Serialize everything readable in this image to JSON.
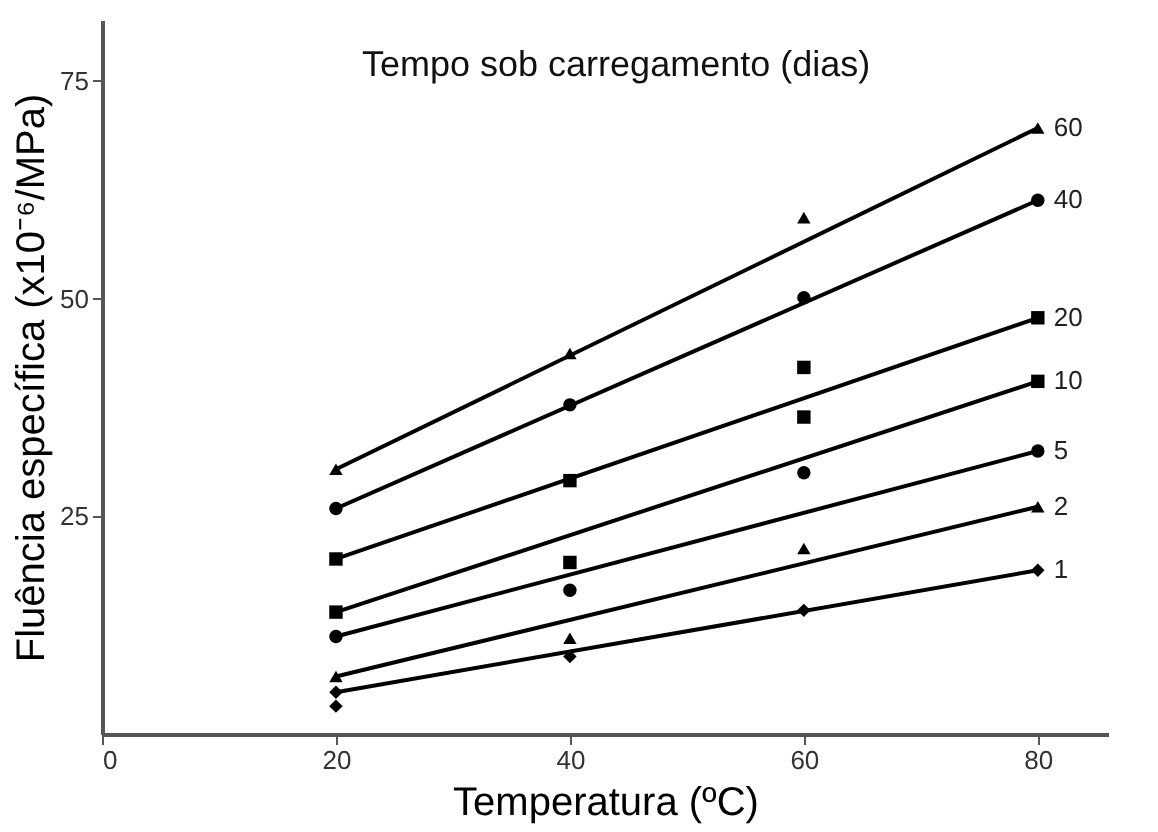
{
  "chart_data": {
    "type": "scatter",
    "xlabel": "Temperatura (ºC)",
    "ylabel": "Fluência específica (x10⁻⁶/MPa)",
    "legend_title": "Tempo sob carregamento (dias)",
    "legend": false,
    "grid": false,
    "xlim": [
      0,
      86
    ],
    "ylim": [
      0,
      82
    ],
    "xticks": [
      0,
      20,
      40,
      60,
      80
    ],
    "yticks": [
      25,
      50,
      75
    ],
    "series": [
      {
        "type": "line",
        "color": "#000000",
        "x": [
          20,
          80
        ],
        "values": [
          30.4,
          69.6
        ]
      },
      {
        "type": "line",
        "color": "#000000",
        "x": [
          20,
          80
        ],
        "values": [
          25.9,
          61.3
        ]
      },
      {
        "type": "line",
        "color": "#000000",
        "x": [
          20,
          80
        ],
        "values": [
          20.1,
          47.8
        ]
      },
      {
        "type": "line",
        "color": "#000000",
        "x": [
          20,
          80
        ],
        "values": [
          14.0,
          40.5
        ]
      },
      {
        "type": "line",
        "color": "#000000",
        "x": [
          20,
          80
        ],
        "values": [
          11.2,
          32.5
        ]
      },
      {
        "type": "line",
        "color": "#000000",
        "x": [
          20,
          80
        ],
        "values": [
          6.6,
          26.1
        ]
      },
      {
        "type": "line",
        "color": "#000000",
        "x": [
          20,
          80
        ],
        "values": [
          4.8,
          18.8
        ]
      },
      {
        "name": "60",
        "marker": "triangle",
        "color": "#000000",
        "x": [
          20,
          40,
          60,
          80
        ],
        "values": [
          30.4,
          43.7,
          59.3,
          69.6
        ]
      },
      {
        "name": "40",
        "marker": "circle",
        "color": "#000000",
        "x": [
          20,
          40,
          60,
          80
        ],
        "values": [
          25.9,
          37.8,
          50.1,
          61.3
        ]
      },
      {
        "name": "20",
        "marker": "square",
        "color": "#000000",
        "x": [
          20,
          40,
          60,
          80
        ],
        "values": [
          20.1,
          29.1,
          42.1,
          47.8
        ]
      },
      {
        "name": "10",
        "marker": "square",
        "color": "#000000",
        "x": [
          20,
          40,
          60,
          80
        ],
        "values": [
          14.0,
          19.7,
          36.4,
          40.5
        ]
      },
      {
        "name": "5",
        "marker": "circle",
        "color": "#000000",
        "x": [
          20,
          40,
          60,
          80
        ],
        "values": [
          11.2,
          16.5,
          30.0,
          32.5
        ]
      },
      {
        "name": "2",
        "marker": "triangle",
        "color": "#000000",
        "x": [
          20,
          40,
          60,
          80
        ],
        "values": [
          6.6,
          11.0,
          21.3,
          26.1
        ]
      },
      {
        "name": "1",
        "marker": "diamond",
        "color": "#000000",
        "x": [
          20,
          40,
          60,
          80
        ],
        "values": [
          4.8,
          8.9,
          14.2,
          18.8
        ]
      },
      {
        "marker": "diamond",
        "color": "#000000",
        "x": [
          20
        ],
        "values": [
          3.2
        ]
      }
    ]
  }
}
